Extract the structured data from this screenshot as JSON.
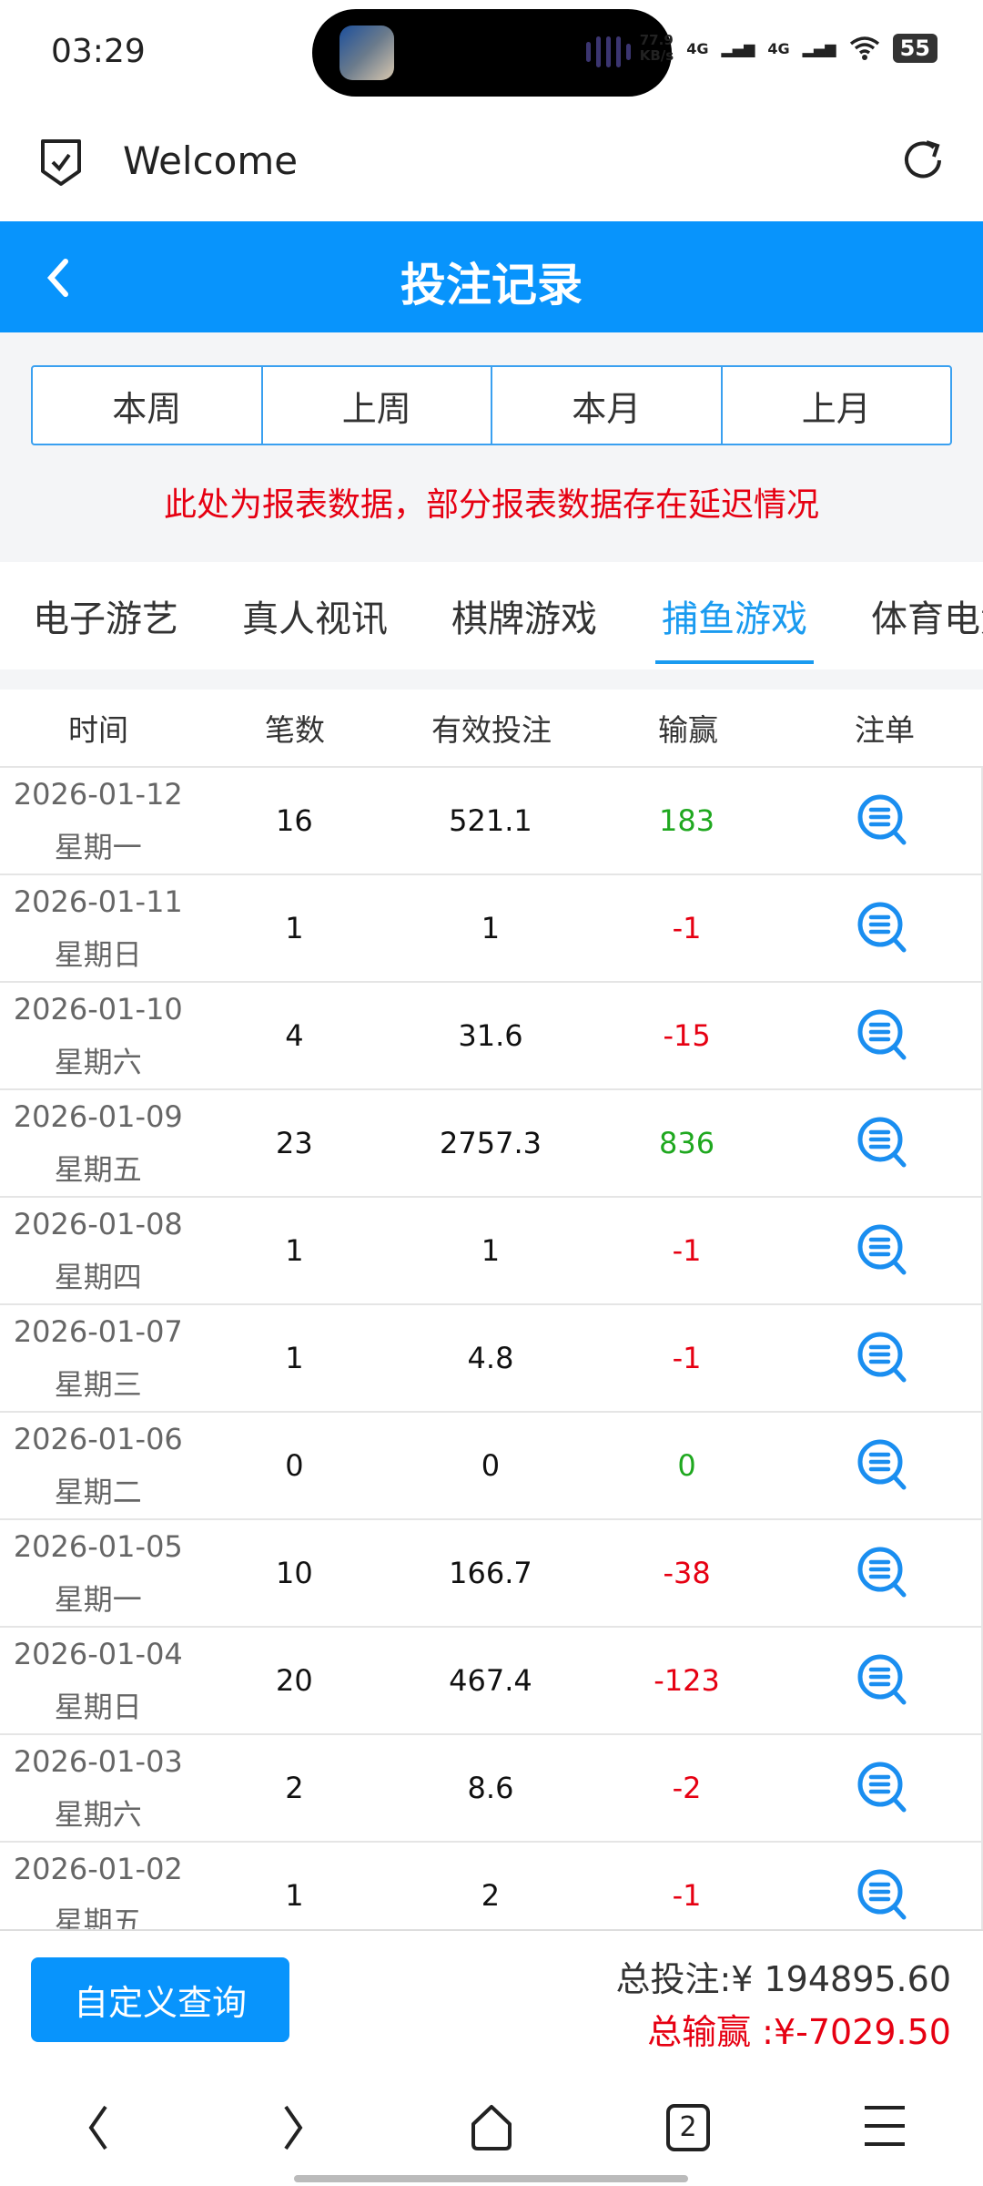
{
  "status_bar": {
    "time": "03:29",
    "speed_value": "77.9",
    "speed_unit": "KB/s",
    "net1": "4G",
    "net2": "4G",
    "battery": "55"
  },
  "browser": {
    "title": "Welcome"
  },
  "header": {
    "title": "投注记录"
  },
  "periods": [
    "本周",
    "上周",
    "本月",
    "上月"
  ],
  "notice": "此处为报表数据，部分报表数据存在延迟情况",
  "tabs": [
    {
      "label": "电子游艺"
    },
    {
      "label": "真人视讯"
    },
    {
      "label": "棋牌游戏"
    },
    {
      "label": "捕鱼游戏",
      "active": true
    },
    {
      "label": "体育电竞"
    }
  ],
  "table": {
    "headers": [
      "时间",
      "笔数",
      "有效投注",
      "输赢",
      "注单"
    ],
    "rows": [
      {
        "date": "2026-01-12",
        "weekday": "星期一",
        "count": "16",
        "valid": "521.1",
        "win": "183"
      },
      {
        "date": "2026-01-11",
        "weekday": "星期日",
        "count": "1",
        "valid": "1",
        "win": "-1"
      },
      {
        "date": "2026-01-10",
        "weekday": "星期六",
        "count": "4",
        "valid": "31.6",
        "win": "-15"
      },
      {
        "date": "2026-01-09",
        "weekday": "星期五",
        "count": "23",
        "valid": "2757.3",
        "win": "836"
      },
      {
        "date": "2026-01-08",
        "weekday": "星期四",
        "count": "1",
        "valid": "1",
        "win": "-1"
      },
      {
        "date": "2026-01-07",
        "weekday": "星期三",
        "count": "1",
        "valid": "4.8",
        "win": "-1"
      },
      {
        "date": "2026-01-06",
        "weekday": "星期二",
        "count": "0",
        "valid": "0",
        "win": "0"
      },
      {
        "date": "2026-01-05",
        "weekday": "星期一",
        "count": "10",
        "valid": "166.7",
        "win": "-38"
      },
      {
        "date": "2026-01-04",
        "weekday": "星期日",
        "count": "20",
        "valid": "467.4",
        "win": "-123"
      },
      {
        "date": "2026-01-03",
        "weekday": "星期六",
        "count": "2",
        "valid": "8.6",
        "win": "-2"
      },
      {
        "date": "2026-01-02",
        "weekday": "星期五",
        "count": "1",
        "valid": "2",
        "win": "-1"
      }
    ]
  },
  "footer": {
    "custom_query": "自定义查询",
    "total_bet": "总投注:¥ 194895.60",
    "total_win": "总输赢 :¥-7029.50"
  },
  "nav": {
    "tab_count": "2"
  },
  "colors": {
    "accent": "#0894fc",
    "positive": "#1fa81f",
    "negative": "#e60012"
  }
}
